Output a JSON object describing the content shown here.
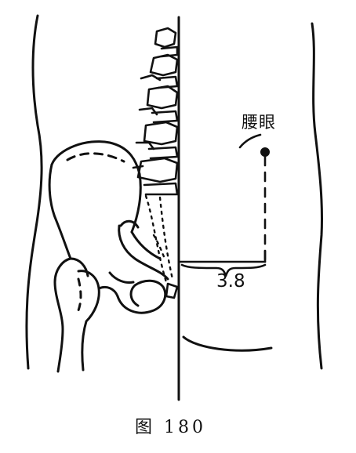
{
  "figure": {
    "point_label": "腰眼",
    "measurement": "3.8",
    "caption": "图 180"
  },
  "colors": {
    "ink": "#111111",
    "paper": "#ffffff"
  }
}
